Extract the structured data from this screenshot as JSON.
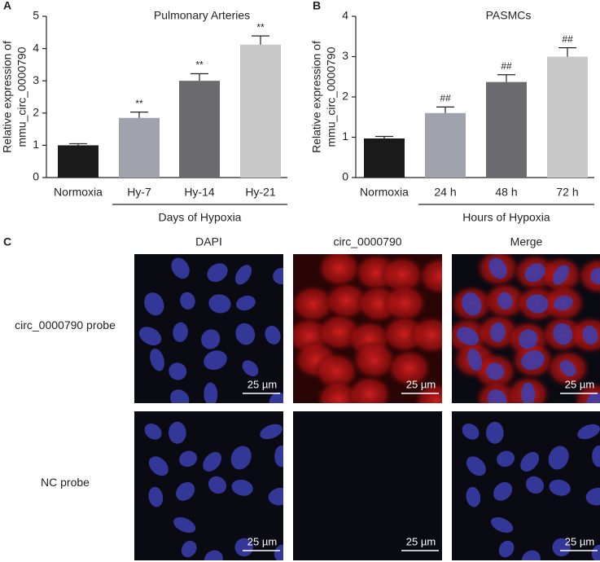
{
  "chart_data": [
    {
      "type": "bar",
      "panel_label": "A",
      "title": "Pulmonary Arteries",
      "ylabel": [
        "Relative expression of",
        "mmu_circ_0000790"
      ],
      "categories": [
        "Normoxia",
        "Hy-7",
        "Hy-14",
        "Hy-21"
      ],
      "group_label": "Days of Hypoxia",
      "values": [
        1.0,
        1.85,
        3.0,
        4.12
      ],
      "errors": [
        0.05,
        0.18,
        0.22,
        0.27
      ],
      "significance": [
        null,
        "**",
        "**",
        "**"
      ],
      "colors": [
        "#1a1a1a",
        "#a0a2ac",
        "#6b6b6f",
        "#c8c8c8"
      ],
      "ylim": [
        0,
        5
      ],
      "yticks": [
        0,
        1,
        2,
        3,
        4,
        5
      ]
    },
    {
      "type": "bar",
      "panel_label": "B",
      "title": "PASMCs",
      "ylabel": [
        "Relative expression of",
        "mmu_circ_0000790"
      ],
      "categories": [
        "Normoxia",
        "24 h",
        "48 h",
        "72 h"
      ],
      "group_label": "Hours of Hypoxia",
      "values": [
        0.97,
        1.6,
        2.37,
        3.0
      ],
      "errors": [
        0.05,
        0.15,
        0.18,
        0.22
      ],
      "significance": [
        null,
        "##",
        "##",
        "##"
      ],
      "colors": [
        "#1a1a1a",
        "#a0a2ac",
        "#6b6b6f",
        "#c8c8c8"
      ],
      "ylim": [
        0,
        4
      ],
      "yticks": [
        0,
        1,
        2,
        3,
        4
      ]
    }
  ],
  "panel_c": {
    "panel_label": "C",
    "columns": [
      "DAPI",
      "circ_0000790",
      "Merge"
    ],
    "rows": [
      "circ_0000790 probe",
      "NC probe"
    ],
    "scale_bar": "25 µm"
  }
}
